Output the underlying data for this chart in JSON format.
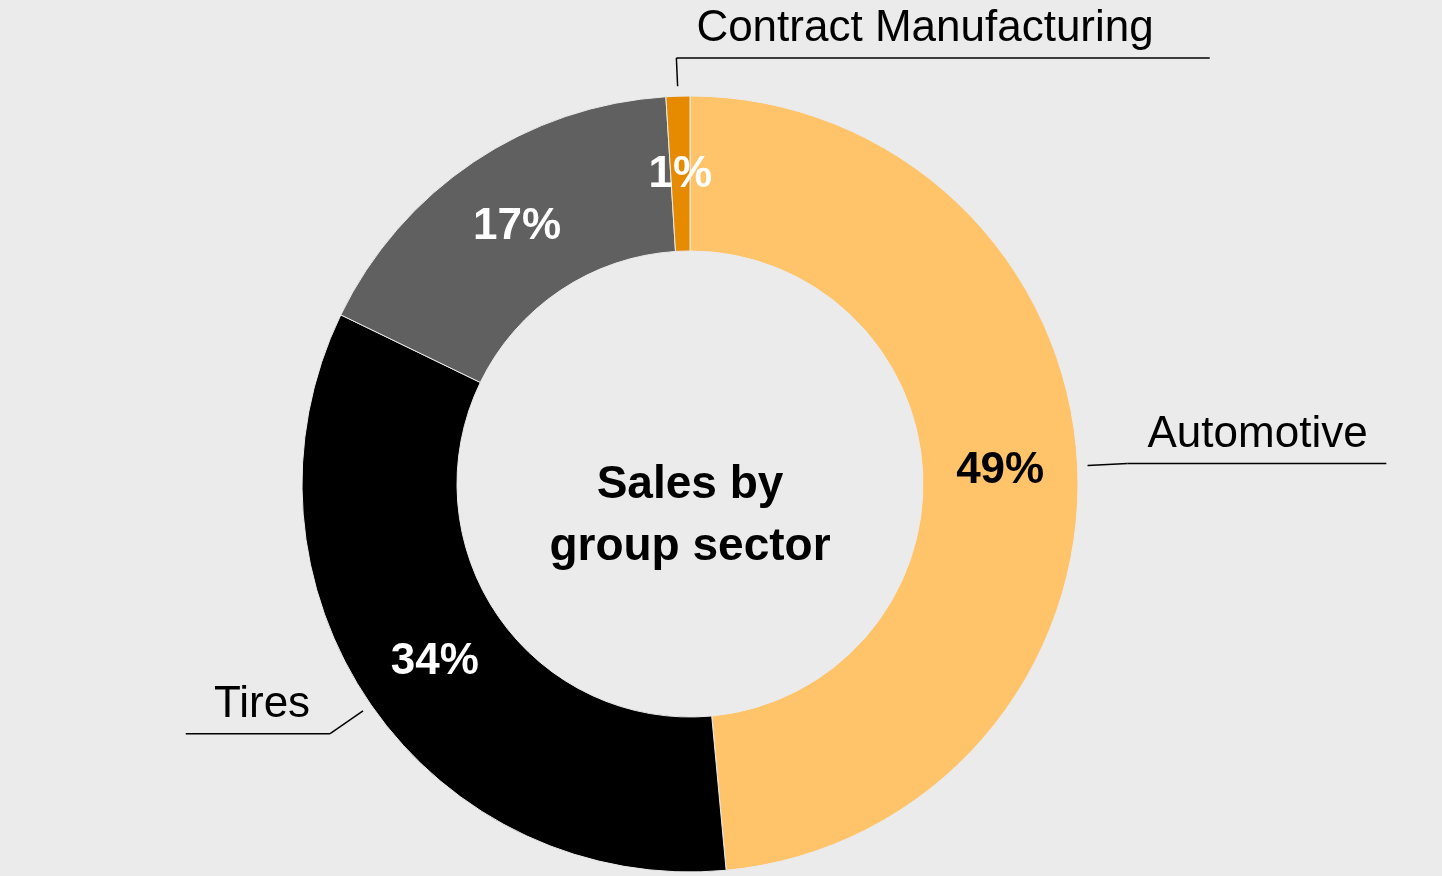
{
  "chart_data": {
    "type": "donut",
    "title": "Sales by group sector",
    "categories": [
      "Automotive",
      "Tires",
      null,
      "Contract Manufacturing"
    ],
    "values": [
      49,
      34,
      17,
      1
    ],
    "colors": [
      "#ffc36a",
      "#000000",
      "#606060",
      "#e68a00"
    ],
    "value_labels": [
      "49%",
      "34%",
      "17%",
      "1%"
    ]
  }
}
